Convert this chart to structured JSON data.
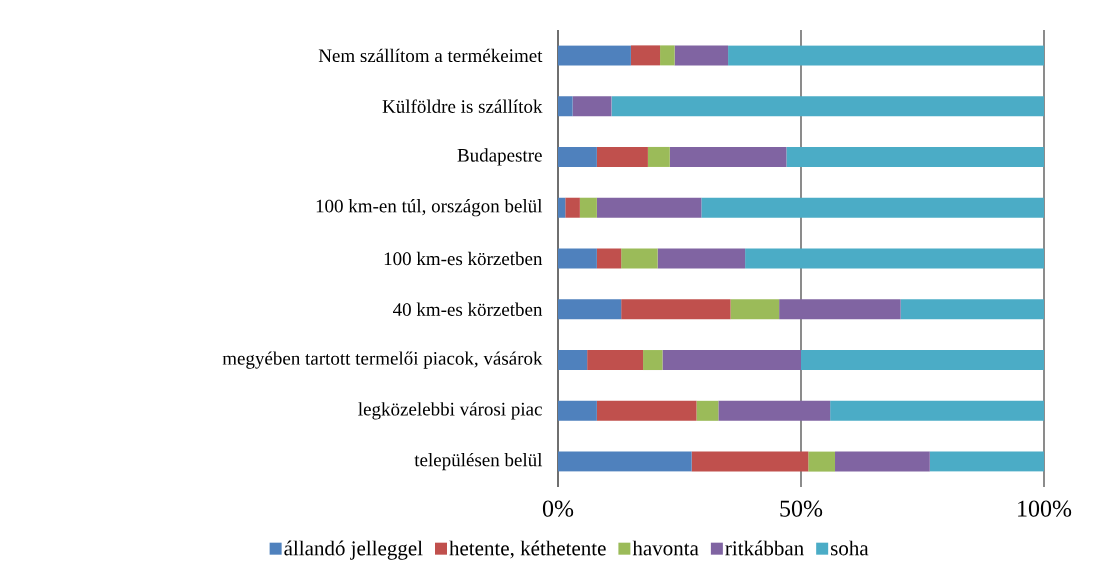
{
  "chart_data": {
    "type": "bar",
    "orientation": "horizontal",
    "stacked": true,
    "categories": [
      "Nem szállítom a termékeimet",
      "Külföldre is szállítok",
      "Budapestre",
      "100 km-en túl, országon belül",
      "100 km-es körzetben",
      "40 km-es körzetben",
      "megyében tartott termelői piacok, vásárok",
      "legközelebbi városi piac",
      "településen belül"
    ],
    "series": [
      {
        "name": "állandó jelleggel",
        "color": "#4f81bd",
        "values": [
          15,
          3,
          8,
          1.5,
          8,
          13,
          6,
          8,
          27.5
        ]
      },
      {
        "name": "hetente, kéthetente",
        "color": "#c0504d",
        "values": [
          6,
          0,
          10.5,
          3,
          5,
          22.5,
          11.5,
          20.5,
          24
        ]
      },
      {
        "name": "havonta",
        "color": "#9bbb59",
        "values": [
          3,
          0,
          4.5,
          3.5,
          7.5,
          10,
          4,
          4.5,
          5.5
        ]
      },
      {
        "name": "ritkábban",
        "color": "#8064a2",
        "values": [
          11,
          8,
          24,
          21.5,
          18,
          25,
          28.5,
          23,
          19.5
        ]
      },
      {
        "name": "soha",
        "color": "#4bacc6",
        "values": [
          65,
          89,
          53,
          70.5,
          61.5,
          29.5,
          50,
          44,
          23.5
        ]
      }
    ],
    "xlim": [
      0,
      100
    ],
    "xticks": [
      {
        "value": 0,
        "label": "0%"
      },
      {
        "value": 50,
        "label": "50%"
      },
      {
        "value": 100,
        "label": "100%"
      }
    ],
    "grid": "x",
    "legend": "bottom"
  }
}
